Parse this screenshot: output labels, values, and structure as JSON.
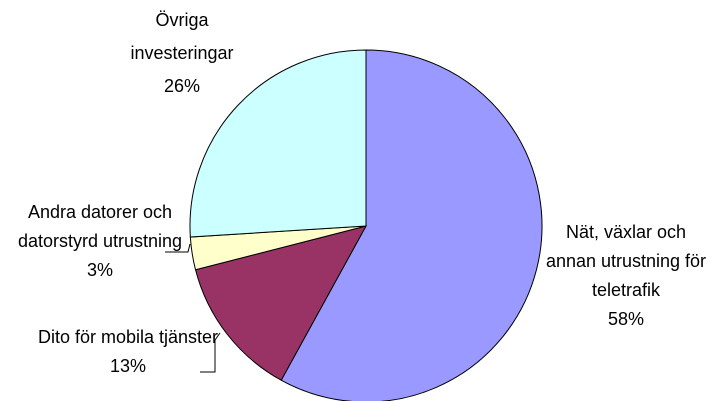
{
  "chart_data": {
    "type": "pie",
    "categories": [
      "Nät, växlar och annan utrustning för teletrafik",
      "Dito för mobila tjänster",
      "Andra datorer och datorstyrd utrustning",
      "Övriga investeringar"
    ],
    "values": [
      58,
      13,
      3,
      26
    ],
    "value_labels": [
      "58%",
      "13%",
      "3%",
      "26%"
    ],
    "colors": [
      "#9999ff",
      "#993366",
      "#ffffcc",
      "#ccffff"
    ]
  }
}
